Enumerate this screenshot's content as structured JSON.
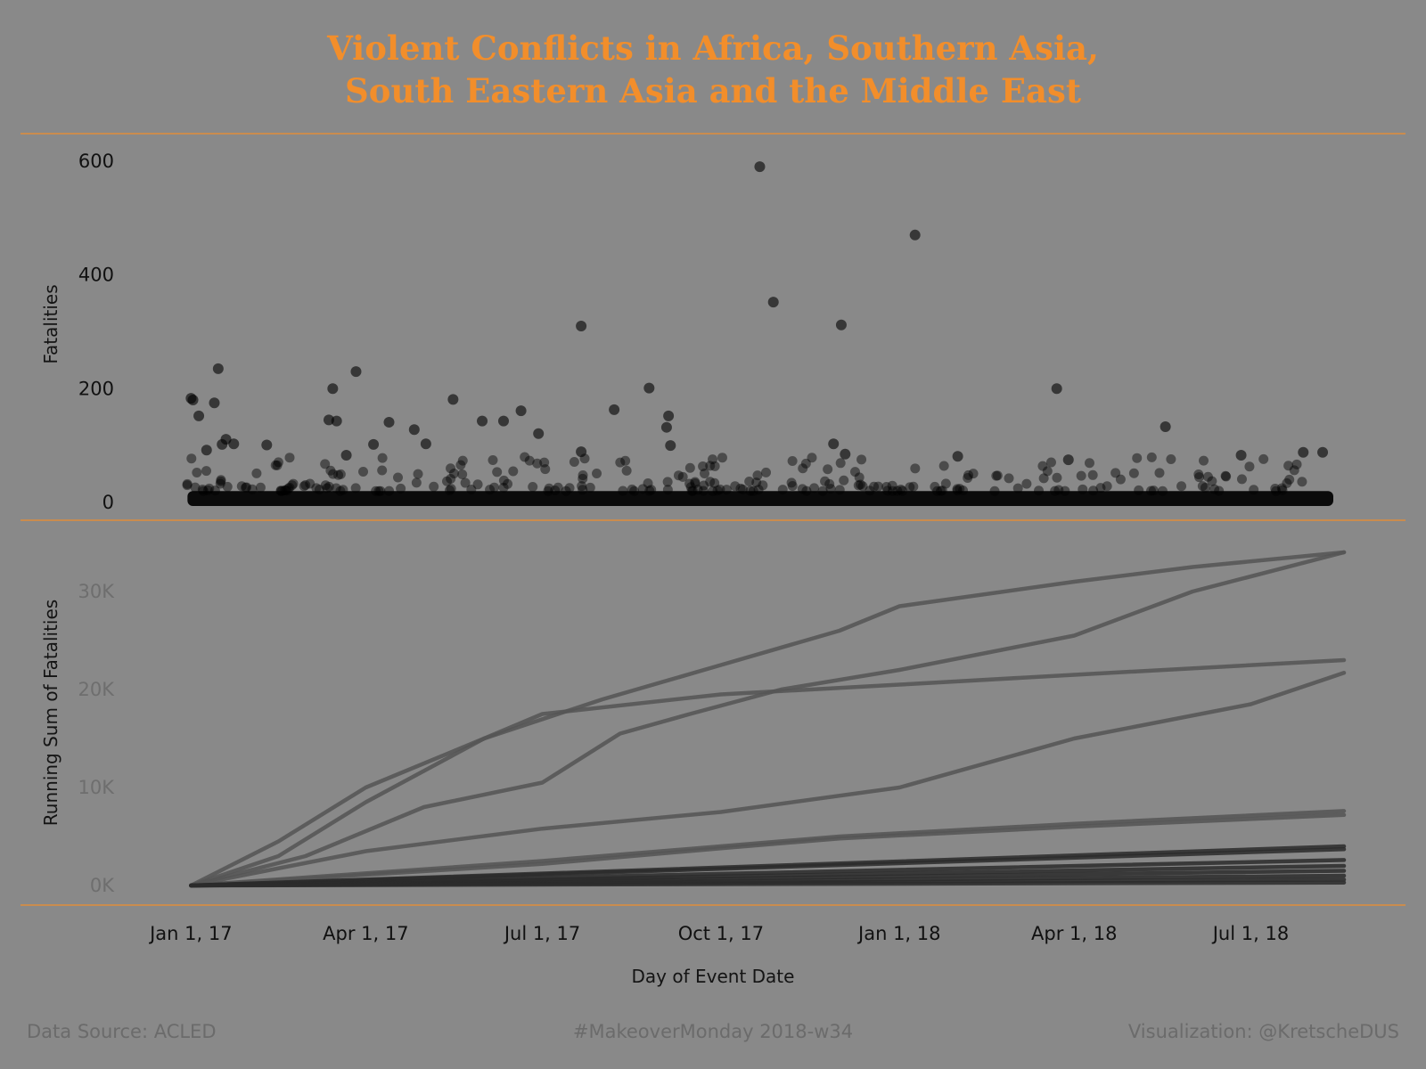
{
  "title_lines": [
    "Violent Conflicts in Africa, Southern Asia,",
    "South Eastern Asia and the Middle East"
  ],
  "footer": {
    "left": "Data Source: ACLED",
    "center": "#MakeoverMonday 2018-w34",
    "right": "Visualization: @KretscheDUS"
  },
  "colors": {
    "background": "#898989",
    "accent": "#f28e2b",
    "marks": "#000000",
    "lines": "#4a4a4a"
  },
  "x_axis": {
    "title": "Day of Event Date",
    "ticks": [
      {
        "label": "Jan 1, 17",
        "value": "2017-01-01"
      },
      {
        "label": "Apr 1, 17",
        "value": "2017-04-01"
      },
      {
        "label": "Jul 1, 17",
        "value": "2017-07-01"
      },
      {
        "label": "Oct 1, 17",
        "value": "2017-10-01"
      },
      {
        "label": "Jan 1, 18",
        "value": "2018-01-01"
      },
      {
        "label": "Apr 1, 18",
        "value": "2018-04-01"
      },
      {
        "label": "Jul 1, 18",
        "value": "2018-07-01"
      }
    ],
    "range": [
      "2016-12-30",
      "2018-08-18"
    ]
  },
  "chart_data": [
    {
      "type": "scatter",
      "ylabel": "Fatalities",
      "ylim": [
        0,
        620
      ],
      "yticks": [
        {
          "label": "600",
          "value": 600
        },
        {
          "label": "400",
          "value": 400
        },
        {
          "label": "200",
          "value": 200
        },
        {
          "label": "0",
          "value": 0
        }
      ],
      "points": [
        {
          "x": "2017-01-01",
          "y": 183
        },
        {
          "x": "2017-01-02",
          "y": 180
        },
        {
          "x": "2017-01-05",
          "y": 152
        },
        {
          "x": "2017-01-13",
          "y": 175
        },
        {
          "x": "2017-01-15",
          "y": 235
        },
        {
          "x": "2017-01-19",
          "y": 111
        },
        {
          "x": "2017-01-17",
          "y": 102
        },
        {
          "x": "2017-01-23",
          "y": 103
        },
        {
          "x": "2017-01-09",
          "y": 92
        },
        {
          "x": "2017-02-09",
          "y": 101
        },
        {
          "x": "2017-03-15",
          "y": 200
        },
        {
          "x": "2017-03-13",
          "y": 145
        },
        {
          "x": "2017-03-17",
          "y": 143
        },
        {
          "x": "2017-03-27",
          "y": 230
        },
        {
          "x": "2017-03-22",
          "y": 83
        },
        {
          "x": "2017-04-05",
          "y": 102
        },
        {
          "x": "2017-04-13",
          "y": 141
        },
        {
          "x": "2017-04-26",
          "y": 128
        },
        {
          "x": "2017-05-02",
          "y": 103
        },
        {
          "x": "2017-05-16",
          "y": 181
        },
        {
          "x": "2017-05-31",
          "y": 143
        },
        {
          "x": "2017-06-11",
          "y": 143
        },
        {
          "x": "2017-06-20",
          "y": 161
        },
        {
          "x": "2017-06-29",
          "y": 121
        },
        {
          "x": "2017-07-21",
          "y": 310
        },
        {
          "x": "2017-07-21",
          "y": 89
        },
        {
          "x": "2017-08-07",
          "y": 163
        },
        {
          "x": "2017-08-25",
          "y": 201
        },
        {
          "x": "2017-09-04",
          "y": 152
        },
        {
          "x": "2017-09-03",
          "y": 132
        },
        {
          "x": "2017-09-05",
          "y": 100
        },
        {
          "x": "2017-10-21",
          "y": 590
        },
        {
          "x": "2017-10-28",
          "y": 352
        },
        {
          "x": "2017-12-02",
          "y": 312
        },
        {
          "x": "2017-11-28",
          "y": 103
        },
        {
          "x": "2017-12-04",
          "y": 85
        },
        {
          "x": "2018-01-09",
          "y": 470
        },
        {
          "x": "2018-01-31",
          "y": 81
        },
        {
          "x": "2018-03-23",
          "y": 200
        },
        {
          "x": "2018-03-29",
          "y": 75
        },
        {
          "x": "2018-05-18",
          "y": 133
        },
        {
          "x": "2018-06-26",
          "y": 83
        },
        {
          "x": "2018-07-28",
          "y": 88
        },
        {
          "x": "2018-08-07",
          "y": 88
        }
      ],
      "dense_band": {
        "y_from": 0,
        "y_to": 20,
        "note": "most events cluster near 0–20 fatalities"
      }
    },
    {
      "type": "line",
      "ylabel": "Running Sum of Fatalities",
      "ylim": [
        0,
        36000
      ],
      "yticks": [
        {
          "label": "30K",
          "value": 30000
        },
        {
          "label": "20K",
          "value": 20000
        },
        {
          "label": "10K",
          "value": 10000
        },
        {
          "label": "0K",
          "value": 0
        }
      ],
      "series": [
        {
          "values": [
            [
              "2017-01-01",
              0
            ],
            [
              "2017-02-15",
              4500
            ],
            [
              "2017-04-01",
              10000
            ],
            [
              "2017-06-01",
              15000
            ],
            [
              "2017-08-01",
              19000
            ],
            [
              "2017-10-01",
              22500
            ],
            [
              "2017-12-01",
              26000
            ],
            [
              "2018-01-01",
              28500
            ],
            [
              "2018-04-01",
              31000
            ],
            [
              "2018-06-01",
              32500
            ],
            [
              "2018-08-18",
              34000
            ]
          ]
        },
        {
          "values": [
            [
              "2017-01-01",
              0
            ],
            [
              "2017-02-15",
              3000
            ],
            [
              "2017-04-01",
              8500
            ],
            [
              "2017-06-01",
              15000
            ],
            [
              "2017-07-01",
              17500
            ],
            [
              "2017-10-01",
              19500
            ],
            [
              "2018-01-01",
              20500
            ],
            [
              "2018-04-01",
              21500
            ],
            [
              "2018-08-18",
              23000
            ]
          ]
        },
        {
          "values": [
            [
              "2017-01-01",
              0
            ],
            [
              "2017-03-01",
              3000
            ],
            [
              "2017-05-01",
              8000
            ],
            [
              "2017-07-01",
              10500
            ],
            [
              "2017-08-10",
              15500
            ],
            [
              "2017-09-15",
              17500
            ],
            [
              "2017-11-01",
              20000
            ],
            [
              "2018-01-01",
              22000
            ],
            [
              "2018-04-01",
              25500
            ],
            [
              "2018-06-01",
              30000
            ],
            [
              "2018-08-18",
              34000
            ]
          ]
        },
        {
          "values": [
            [
              "2017-01-01",
              0
            ],
            [
              "2017-04-01",
              3500
            ],
            [
              "2017-07-01",
              5800
            ],
            [
              "2017-10-01",
              7500
            ],
            [
              "2018-01-01",
              10000
            ],
            [
              "2018-04-01",
              15000
            ],
            [
              "2018-07-01",
              18500
            ],
            [
              "2018-08-18",
              21700
            ]
          ]
        },
        {
          "values": [
            [
              "2017-01-01",
              0
            ],
            [
              "2017-07-01",
              2500
            ],
            [
              "2017-10-01",
              4000
            ],
            [
              "2017-12-01",
              5000
            ],
            [
              "2018-04-01",
              6300
            ],
            [
              "2018-08-18",
              7600
            ]
          ]
        },
        {
          "values": [
            [
              "2017-01-01",
              0
            ],
            [
              "2017-07-01",
              2200
            ],
            [
              "2017-10-01",
              3800
            ],
            [
              "2017-12-01",
              4800
            ],
            [
              "2018-04-01",
              6000
            ],
            [
              "2018-08-18",
              7200
            ]
          ]
        },
        {
          "values": [
            [
              "2017-01-01",
              0
            ],
            [
              "2018-08-18",
              4000
            ]
          ]
        },
        {
          "values": [
            [
              "2017-01-01",
              0
            ],
            [
              "2018-08-18",
              3700
            ]
          ]
        },
        {
          "values": [
            [
              "2017-01-01",
              0
            ],
            [
              "2018-08-18",
              2600
            ]
          ]
        },
        {
          "values": [
            [
              "2017-01-01",
              0
            ],
            [
              "2018-08-18",
              2000
            ]
          ]
        },
        {
          "values": [
            [
              "2017-01-01",
              0
            ],
            [
              "2018-08-18",
              1500
            ]
          ]
        },
        {
          "values": [
            [
              "2017-01-01",
              0
            ],
            [
              "2018-08-18",
              1000
            ]
          ]
        },
        {
          "values": [
            [
              "2017-01-01",
              0
            ],
            [
              "2018-08-18",
              600
            ]
          ]
        },
        {
          "values": [
            [
              "2017-01-01",
              0
            ],
            [
              "2018-08-18",
              300
            ]
          ]
        }
      ]
    }
  ]
}
